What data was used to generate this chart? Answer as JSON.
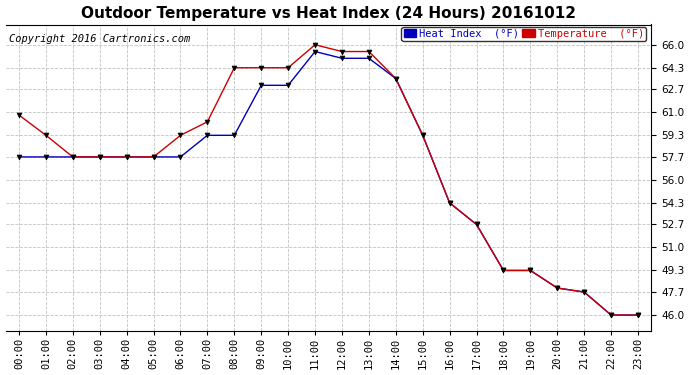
{
  "title": "Outdoor Temperature vs Heat Index (24 Hours) 20161012",
  "copyright": "Copyright 2016 Cartronics.com",
  "legend_heat_index": "Heat Index  (°F)",
  "legend_temperature": "Temperature  (°F)",
  "hours": [
    "00:00",
    "01:00",
    "02:00",
    "03:00",
    "04:00",
    "05:00",
    "06:00",
    "07:00",
    "08:00",
    "09:00",
    "10:00",
    "11:00",
    "12:00",
    "13:00",
    "14:00",
    "15:00",
    "16:00",
    "17:00",
    "18:00",
    "19:00",
    "20:00",
    "21:00",
    "22:00",
    "23:00"
  ],
  "heat_index": [
    57.7,
    57.7,
    57.7,
    57.7,
    57.7,
    57.7,
    57.7,
    59.3,
    59.3,
    63.0,
    63.0,
    65.5,
    65.0,
    65.0,
    63.5,
    59.3,
    54.3,
    52.7,
    49.3,
    49.3,
    48.0,
    47.7,
    46.0,
    46.0
  ],
  "temperature": [
    60.8,
    59.3,
    57.7,
    57.7,
    57.7,
    57.7,
    59.3,
    60.3,
    64.3,
    64.3,
    64.3,
    66.0,
    65.5,
    65.5,
    63.5,
    59.3,
    54.3,
    52.7,
    49.3,
    49.3,
    48.0,
    47.7,
    46.0,
    46.0
  ],
  "ylim_min": 44.8,
  "ylim_max": 67.5,
  "yticks": [
    46.0,
    47.7,
    49.3,
    51.0,
    52.7,
    54.3,
    56.0,
    57.7,
    59.3,
    61.0,
    62.7,
    64.3,
    66.0
  ],
  "heat_index_color": "#0000bb",
  "temperature_color": "#cc0000",
  "background_color": "#ffffff",
  "grid_color": "#bbbbbb",
  "title_fontsize": 11,
  "axis_fontsize": 7.5,
  "copyright_fontsize": 7.5,
  "marker_color": "#000000"
}
